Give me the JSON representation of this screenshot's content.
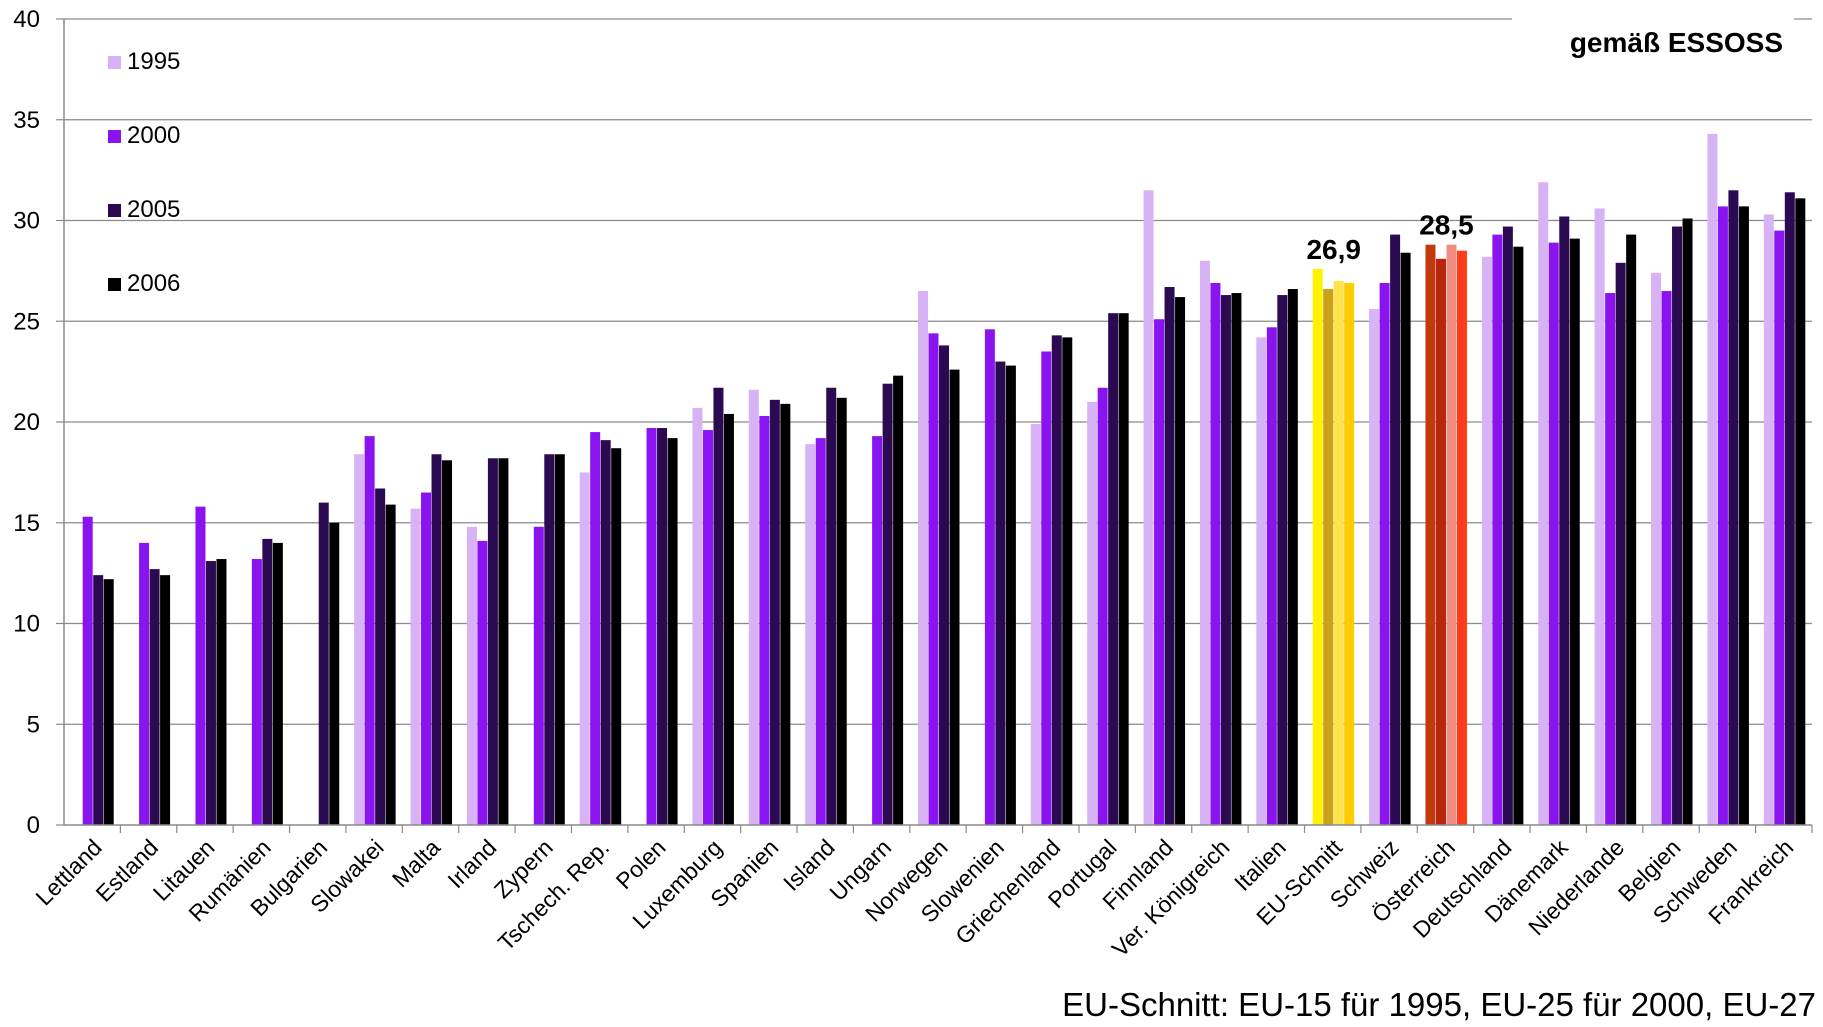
{
  "chart_data": {
    "type": "bar",
    "title": "gemäß ESSOSS",
    "footnote": "EU-Schnitt: EU-15 für 1995, EU-25 für 2000, EU-27",
    "ylim": [
      0,
      40
    ],
    "yticks": [
      "0",
      "5",
      "10",
      "15",
      "20",
      "25",
      "30",
      "35",
      "40"
    ],
    "grid": true,
    "legend_position": "top-left",
    "categories": [
      "Lettland",
      "Estland",
      "Litauen",
      "Rumänien",
      "Bulgarien",
      "Slowakei",
      "Malta",
      "Irland",
      "Zypern",
      "Tschech. Rep.",
      "Polen",
      "Luxemburg",
      "Spanien",
      "Island",
      "Ungarn",
      "Norwegen",
      "Slowenien",
      "Griechenland",
      "Portugal",
      "Finnland",
      "Ver. Königreich",
      "Italien",
      "EU-Schnitt",
      "Schweiz",
      "Österreich",
      "Deutschland",
      "Dänemark",
      "Niederlande",
      "Belgien",
      "Schweden",
      "Frankreich"
    ],
    "series": [
      {
        "name": "1995",
        "color": "#d7b3f5",
        "values": [
          null,
          null,
          null,
          null,
          null,
          18.4,
          15.7,
          14.8,
          null,
          17.5,
          null,
          20.7,
          21.6,
          18.9,
          null,
          26.5,
          null,
          19.9,
          21.0,
          31.5,
          28.0,
          24.2,
          27.6,
          25.6,
          28.8,
          28.2,
          31.9,
          30.6,
          27.4,
          34.3,
          30.3
        ]
      },
      {
        "name": "2000",
        "color": "#8a14f0",
        "values": [
          15.3,
          14.0,
          15.8,
          13.2,
          null,
          19.3,
          16.5,
          14.1,
          14.8,
          19.5,
          19.7,
          19.6,
          20.3,
          19.2,
          19.3,
          24.4,
          24.6,
          23.5,
          21.7,
          25.1,
          26.9,
          24.7,
          26.6,
          26.9,
          28.1,
          29.3,
          28.9,
          26.4,
          26.5,
          30.7,
          29.5
        ]
      },
      {
        "name": "2005",
        "color": "#2b0a52",
        "values": [
          12.4,
          12.7,
          13.1,
          14.2,
          16.0,
          16.7,
          18.4,
          18.2,
          18.4,
          19.1,
          19.7,
          21.7,
          21.1,
          21.7,
          21.9,
          23.8,
          23.0,
          24.3,
          25.4,
          26.7,
          26.3,
          26.3,
          27.0,
          29.3,
          28.8,
          29.7,
          30.2,
          27.9,
          29.7,
          31.5,
          31.4
        ]
      },
      {
        "name": "2006",
        "color": "#000000",
        "values": [
          12.2,
          12.4,
          13.2,
          14.0,
          15.0,
          15.9,
          18.1,
          18.2,
          18.4,
          18.7,
          19.2,
          20.4,
          20.9,
          21.2,
          22.3,
          22.6,
          22.8,
          24.2,
          25.4,
          26.2,
          26.4,
          26.6,
          26.9,
          28.4,
          28.5,
          28.7,
          29.1,
          29.3,
          30.1,
          30.7,
          31.1
        ]
      }
    ],
    "highlight_colors": {
      "EU-Schnitt": [
        "#fff200",
        "#c9a21a",
        "#ffe34d",
        "#ffcc00"
      ],
      "Österreich": [
        "#c23a0c",
        "#b8260d",
        "#f08c80",
        "#ff3b1a"
      ]
    },
    "annotations": [
      {
        "category": "EU-Schnitt",
        "text": "26,9"
      },
      {
        "category": "Österreich",
        "text": "28,5"
      }
    ]
  }
}
